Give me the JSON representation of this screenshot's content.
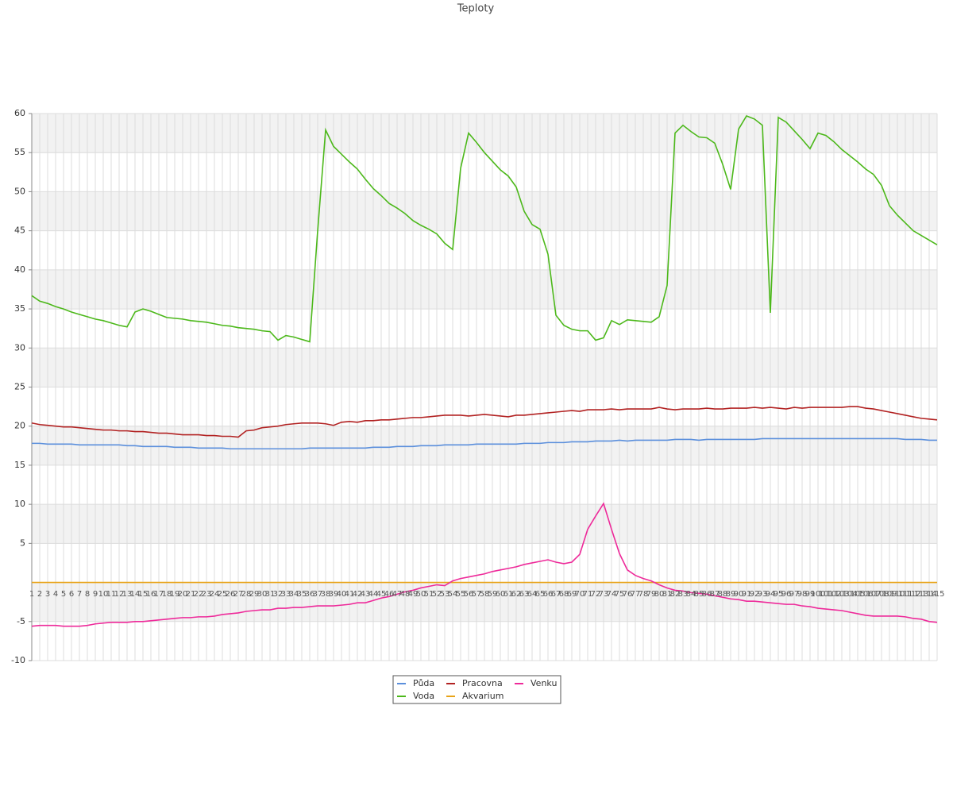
{
  "chart_data": {
    "type": "line",
    "title": "Teploty",
    "categories": [
      "1",
      "2",
      "3",
      "4",
      "5",
      "6",
      "7",
      "8",
      "9",
      "10",
      "11",
      "12",
      "13",
      "14",
      "15",
      "16",
      "17",
      "18",
      "19",
      "20",
      "21",
      "22",
      "23",
      "24",
      "25",
      "26",
      "27",
      "28",
      "29",
      "30",
      "31",
      "32",
      "33",
      "34",
      "35",
      "36",
      "37",
      "38",
      "39",
      "40",
      "41",
      "42",
      "43",
      "44",
      "45",
      "46",
      "47",
      "48",
      "49",
      "50",
      "51",
      "52",
      "53",
      "54",
      "55",
      "56",
      "57",
      "58",
      "59",
      "60",
      "61",
      "62",
      "63",
      "64",
      "65",
      "66",
      "67",
      "68",
      "69",
      "70",
      "71",
      "72",
      "73",
      "74",
      "75",
      "76",
      "77",
      "78",
      "79",
      "80",
      "81",
      "82",
      "83",
      "84",
      "85",
      "86",
      "87",
      "88",
      "89",
      "90",
      "91",
      "92",
      "93",
      "94",
      "95",
      "96",
      "97",
      "98",
      "99",
      "100",
      "101",
      "102",
      "103",
      "104",
      "105",
      "106",
      "107",
      "108",
      "109",
      "110",
      "111",
      "112",
      "113",
      "114",
      "115"
    ],
    "ylim": [
      -10,
      60
    ],
    "yticks": [
      -10,
      -5,
      5,
      10,
      15,
      20,
      25,
      30,
      35,
      40,
      45,
      50,
      55,
      60
    ],
    "grid": true,
    "series": [
      {
        "name": "Půda",
        "color": "#5b8fdc",
        "values": [
          17.8,
          17.8,
          17.7,
          17.7,
          17.7,
          17.7,
          17.6,
          17.6,
          17.6,
          17.6,
          17.6,
          17.6,
          17.5,
          17.5,
          17.4,
          17.4,
          17.4,
          17.4,
          17.3,
          17.3,
          17.3,
          17.2,
          17.2,
          17.2,
          17.2,
          17.1,
          17.1,
          17.1,
          17.1,
          17.1,
          17.1,
          17.1,
          17.1,
          17.1,
          17.1,
          17.2,
          17.2,
          17.2,
          17.2,
          17.2,
          17.2,
          17.2,
          17.2,
          17.3,
          17.3,
          17.3,
          17.4,
          17.4,
          17.4,
          17.5,
          17.5,
          17.5,
          17.6,
          17.6,
          17.6,
          17.6,
          17.7,
          17.7,
          17.7,
          17.7,
          17.7,
          17.7,
          17.8,
          17.8,
          17.8,
          17.9,
          17.9,
          17.9,
          18.0,
          18.0,
          18.0,
          18.1,
          18.1,
          18.1,
          18.2,
          18.1,
          18.2,
          18.2,
          18.2,
          18.2,
          18.2,
          18.3,
          18.3,
          18.3,
          18.2,
          18.3,
          18.3,
          18.3,
          18.3,
          18.3,
          18.3,
          18.3,
          18.4,
          18.4,
          18.4,
          18.4,
          18.4,
          18.4,
          18.4,
          18.4,
          18.4,
          18.4,
          18.4,
          18.4,
          18.4,
          18.4,
          18.4,
          18.4,
          18.4,
          18.4,
          18.3,
          18.3,
          18.3,
          18.2,
          18.2
        ]
      },
      {
        "name": "Voda",
        "color": "#4cb81a",
        "values": [
          36.7,
          36.0,
          35.7,
          35.3,
          35.0,
          34.6,
          34.3,
          34.0,
          33.7,
          33.5,
          33.2,
          32.9,
          32.7,
          34.6,
          35.0,
          34.7,
          34.3,
          33.9,
          33.8,
          33.7,
          33.5,
          33.4,
          33.3,
          33.1,
          32.9,
          32.8,
          32.6,
          32.5,
          32.4,
          32.2,
          32.1,
          31.0,
          31.6,
          31.4,
          31.1,
          30.8,
          45.0,
          57.9,
          55.8,
          54.8,
          53.8,
          52.9,
          51.6,
          50.4,
          49.5,
          48.5,
          47.9,
          47.2,
          46.3,
          45.7,
          45.2,
          44.6,
          43.4,
          42.6,
          53.0,
          57.5,
          56.3,
          55.0,
          53.9,
          52.8,
          52.0,
          50.6,
          47.5,
          45.8,
          45.2,
          42.0,
          34.2,
          32.9,
          32.4,
          32.2,
          32.2,
          31.0,
          31.3,
          33.5,
          33.0,
          33.6,
          33.5,
          33.4,
          33.3,
          34.0,
          38.0,
          57.5,
          58.5,
          57.7,
          57.0,
          56.9,
          56.2,
          53.5,
          50.3,
          58.0,
          59.7,
          59.3,
          58.5,
          34.5,
          59.5,
          58.9,
          57.8,
          56.7,
          55.5,
          57.5,
          57.2,
          56.4,
          55.4,
          54.6,
          53.8,
          52.9,
          52.2,
          50.8,
          48.2,
          47.0,
          46.0,
          45.0,
          44.4,
          43.8,
          43.2
        ]
      },
      {
        "name": "Pracovna",
        "color": "#b22222",
        "values": [
          20.4,
          20.2,
          20.1,
          20.0,
          19.9,
          19.9,
          19.8,
          19.7,
          19.6,
          19.5,
          19.5,
          19.4,
          19.4,
          19.3,
          19.3,
          19.2,
          19.1,
          19.1,
          19.0,
          18.9,
          18.9,
          18.9,
          18.8,
          18.8,
          18.7,
          18.7,
          18.6,
          19.4,
          19.5,
          19.8,
          19.9,
          20.0,
          20.2,
          20.3,
          20.4,
          20.4,
          20.4,
          20.3,
          20.1,
          20.5,
          20.6,
          20.5,
          20.7,
          20.7,
          20.8,
          20.8,
          20.9,
          21.0,
          21.1,
          21.1,
          21.2,
          21.3,
          21.4,
          21.4,
          21.4,
          21.3,
          21.4,
          21.5,
          21.4,
          21.3,
          21.2,
          21.4,
          21.4,
          21.5,
          21.6,
          21.7,
          21.8,
          21.9,
          22.0,
          21.9,
          22.1,
          22.1,
          22.1,
          22.2,
          22.1,
          22.2,
          22.2,
          22.2,
          22.2,
          22.4,
          22.2,
          22.1,
          22.2,
          22.2,
          22.2,
          22.3,
          22.2,
          22.2,
          22.3,
          22.3,
          22.3,
          22.4,
          22.3,
          22.4,
          22.3,
          22.2,
          22.4,
          22.3,
          22.4,
          22.4,
          22.4,
          22.4,
          22.4,
          22.5,
          22.5,
          22.3,
          22.2,
          22.0,
          21.8,
          21.6,
          21.4,
          21.2,
          21.0,
          20.9,
          20.8
        ]
      },
      {
        "name": "Akvarium",
        "color": "#e8a317",
        "values": [
          0,
          0,
          0,
          0,
          0,
          0,
          0,
          0,
          0,
          0,
          0,
          0,
          0,
          0,
          0,
          0,
          0,
          0,
          0,
          0,
          0,
          0,
          0,
          0,
          0,
          0,
          0,
          0,
          0,
          0,
          0,
          0,
          0,
          0,
          0,
          0,
          0,
          0,
          0,
          0,
          0,
          0,
          0,
          0,
          0,
          0,
          0,
          0,
          0,
          0,
          0,
          0,
          0,
          0,
          0,
          0,
          0,
          0,
          0,
          0,
          0,
          0,
          0,
          0,
          0,
          0,
          0,
          0,
          0,
          0,
          0,
          0,
          0,
          0,
          0,
          0,
          0,
          0,
          0,
          0,
          0,
          0,
          0,
          0,
          0,
          0,
          0,
          0,
          0,
          0,
          0,
          0,
          0,
          0,
          0,
          0,
          0,
          0,
          0,
          0,
          0,
          0,
          0,
          0,
          0,
          0,
          0,
          0,
          0,
          0,
          0,
          0,
          0,
          0,
          0
        ]
      },
      {
        "name": "Venku",
        "color": "#ee2a9a",
        "values": [
          -5.6,
          -5.5,
          -5.5,
          -5.5,
          -5.6,
          -5.6,
          -5.6,
          -5.5,
          -5.3,
          -5.2,
          -5.1,
          -5.1,
          -5.1,
          -5.0,
          -5.0,
          -4.9,
          -4.8,
          -4.7,
          -4.6,
          -4.5,
          -4.5,
          -4.4,
          -4.4,
          -4.3,
          -4.1,
          -4.0,
          -3.9,
          -3.7,
          -3.6,
          -3.5,
          -3.5,
          -3.3,
          -3.3,
          -3.2,
          -3.2,
          -3.1,
          -3.0,
          -3.0,
          -3.0,
          -2.9,
          -2.8,
          -2.6,
          -2.6,
          -2.3,
          -2.0,
          -1.8,
          -1.5,
          -1.2,
          -1.0,
          -0.7,
          -0.5,
          -0.3,
          -0.4,
          0.2,
          0.5,
          0.7,
          0.9,
          1.1,
          1.4,
          1.6,
          1.8,
          2.0,
          2.3,
          2.5,
          2.7,
          2.9,
          2.6,
          2.4,
          2.6,
          3.6,
          6.8,
          8.5,
          10.1,
          6.8,
          3.7,
          1.6,
          0.9,
          0.5,
          0.2,
          -0.3,
          -0.7,
          -1.0,
          -1.1,
          -1.3,
          -1.4,
          -1.5,
          -1.7,
          -1.9,
          -2.1,
          -2.2,
          -2.4,
          -2.4,
          -2.5,
          -2.6,
          -2.7,
          -2.8,
          -2.8,
          -3.0,
          -3.1,
          -3.3,
          -3.4,
          -3.5,
          -3.6,
          -3.8,
          -4.0,
          -4.2,
          -4.3,
          -4.3,
          -4.3,
          -4.3,
          -4.4,
          -4.6,
          -4.7,
          -5.0,
          -5.1
        ]
      }
    ]
  }
}
